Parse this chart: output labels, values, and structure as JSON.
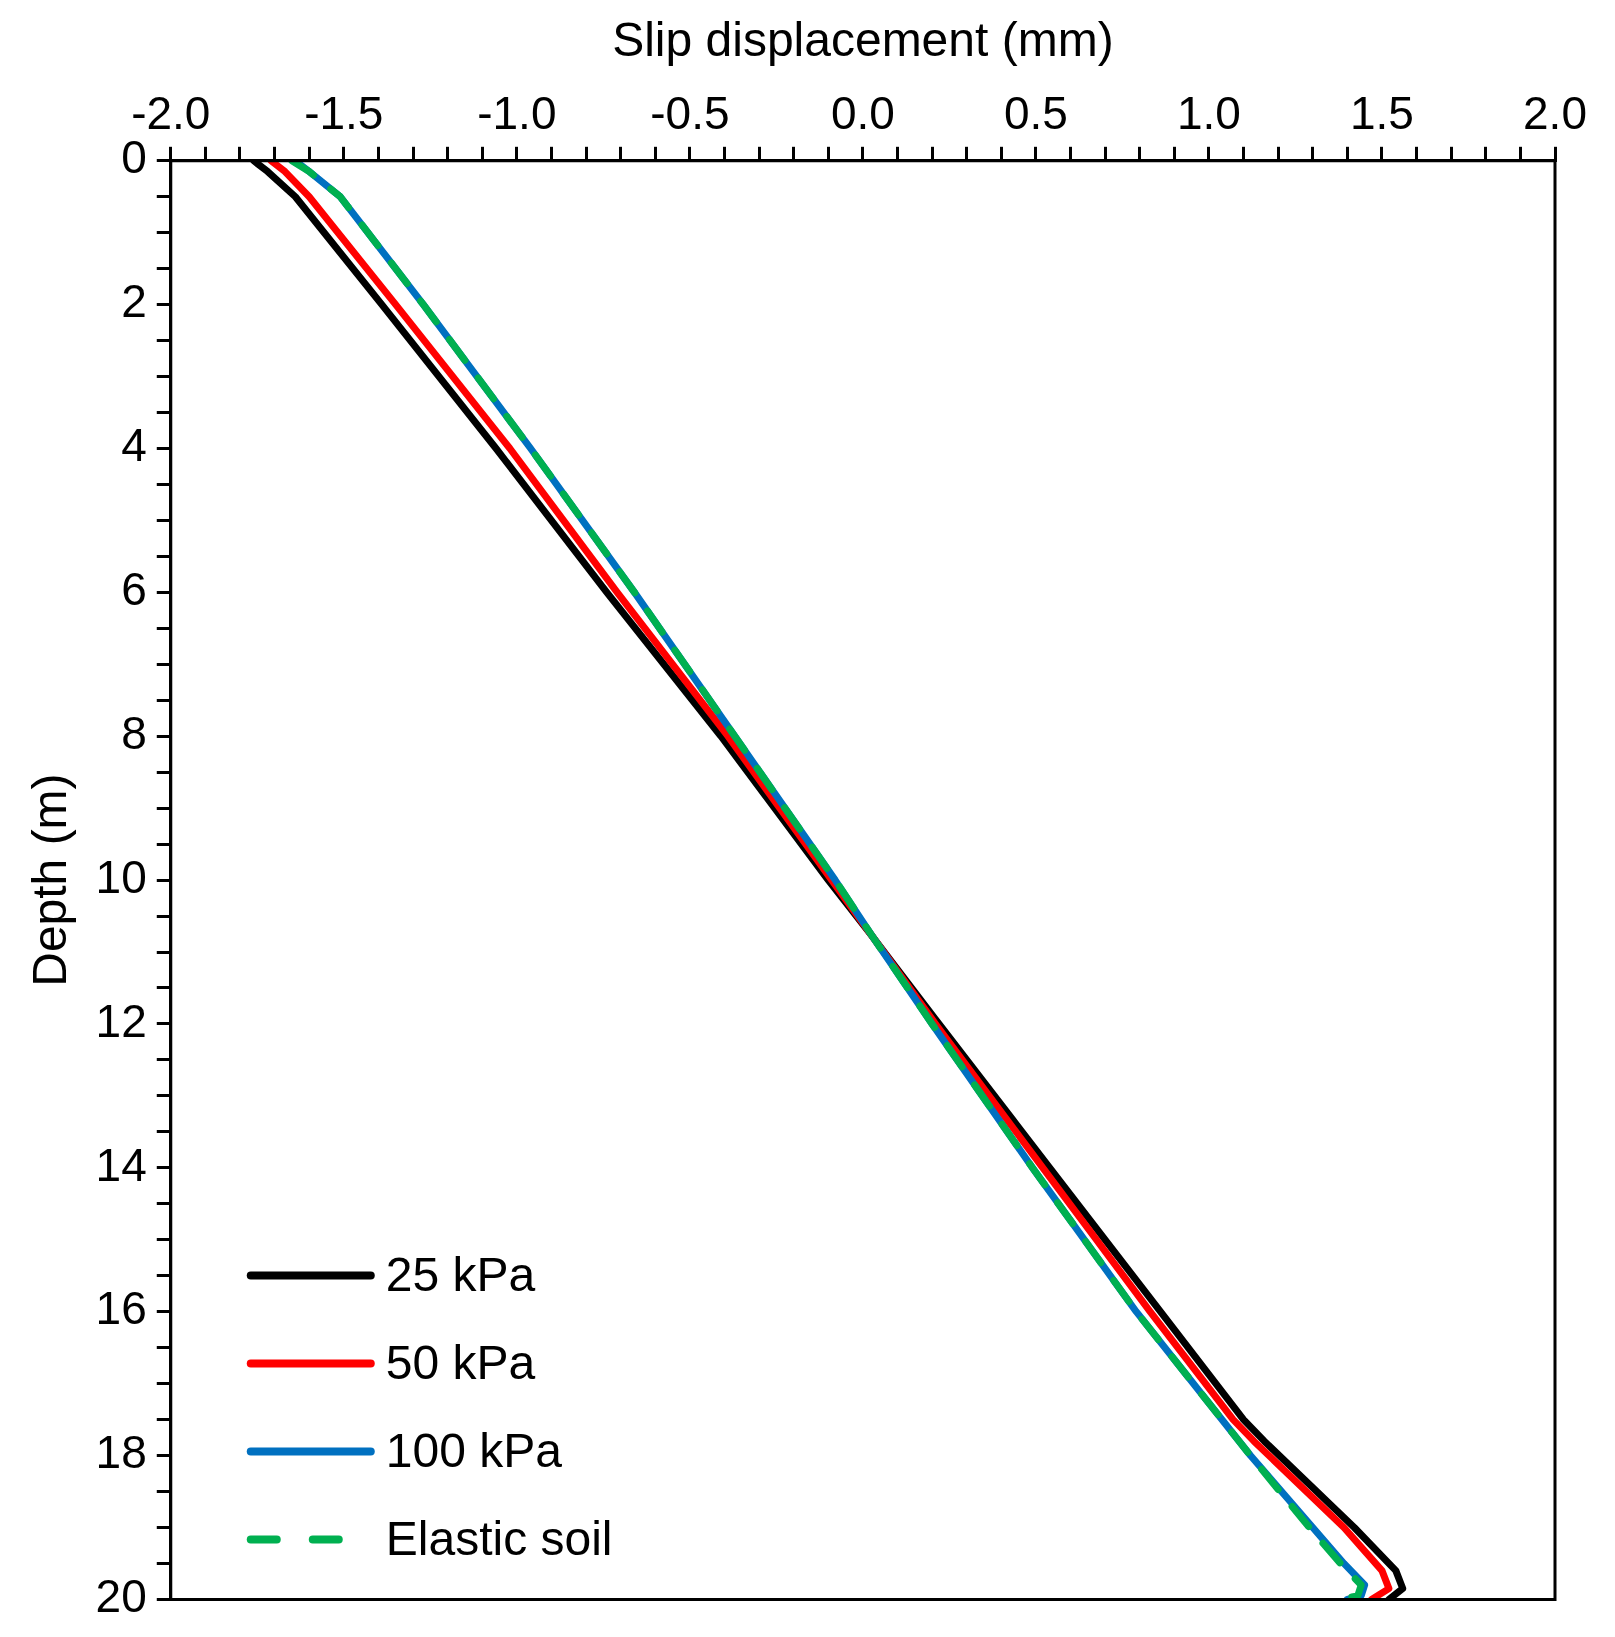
{
  "chart_data": {
    "type": "line",
    "xlabel": "Slip displacement (mm)",
    "ylabel": "Depth (m)",
    "xlim": [
      -2,
      2
    ],
    "ylim": [
      20,
      0
    ],
    "xticks": [
      {
        "value": -2,
        "label": "-2.0"
      },
      {
        "value": -1.9,
        "label": null
      },
      {
        "value": -1.8,
        "label": null
      },
      {
        "value": -1.7,
        "label": null
      },
      {
        "value": -1.6,
        "label": null
      },
      {
        "value": -1.5,
        "label": "-1.5"
      },
      {
        "value": -1.4,
        "label": null
      },
      {
        "value": -1.3,
        "label": null
      },
      {
        "value": -1.2,
        "label": null
      },
      {
        "value": -1.1,
        "label": null
      },
      {
        "value": -1,
        "label": "-1.0"
      },
      {
        "value": -0.9,
        "label": null
      },
      {
        "value": -0.8,
        "label": null
      },
      {
        "value": -0.7,
        "label": null
      },
      {
        "value": -0.6,
        "label": null
      },
      {
        "value": -0.5,
        "label": "-0.5"
      },
      {
        "value": -0.4,
        "label": null
      },
      {
        "value": -0.3,
        "label": null
      },
      {
        "value": -0.2,
        "label": null
      },
      {
        "value": -0.1,
        "label": null
      },
      {
        "value": 0,
        "label": "0.0"
      },
      {
        "value": 0.1,
        "label": null
      },
      {
        "value": 0.2,
        "label": null
      },
      {
        "value": 0.3,
        "label": null
      },
      {
        "value": 0.4,
        "label": null
      },
      {
        "value": 0.5,
        "label": "0.5"
      },
      {
        "value": 0.6,
        "label": null
      },
      {
        "value": 0.7,
        "label": null
      },
      {
        "value": 0.8,
        "label": null
      },
      {
        "value": 0.9,
        "label": null
      },
      {
        "value": 1,
        "label": "1.0"
      },
      {
        "value": 1.1,
        "label": null
      },
      {
        "value": 1.2,
        "label": null
      },
      {
        "value": 1.3,
        "label": null
      },
      {
        "value": 1.4,
        "label": null
      },
      {
        "value": 1.5,
        "label": "1.5"
      },
      {
        "value": 1.6,
        "label": null
      },
      {
        "value": 1.7,
        "label": null
      },
      {
        "value": 1.8,
        "label": null
      },
      {
        "value": 1.9,
        "label": null
      },
      {
        "value": 2,
        "label": "2.0"
      }
    ],
    "yticks": [
      0,
      {
        "value": 0.5,
        "label": null
      },
      {
        "value": 1,
        "label": null
      },
      {
        "value": 1.5,
        "label": null
      },
      2,
      {
        "value": 2.5,
        "label": null
      },
      {
        "value": 3,
        "label": null
      },
      {
        "value": 3.5,
        "label": null
      },
      4,
      {
        "value": 4.5,
        "label": null
      },
      {
        "value": 5,
        "label": null
      },
      {
        "value": 5.5,
        "label": null
      },
      6,
      {
        "value": 6.5,
        "label": null
      },
      {
        "value": 7,
        "label": null
      },
      {
        "value": 7.5,
        "label": null
      },
      8,
      {
        "value": 8.5,
        "label": null
      },
      {
        "value": 9,
        "label": null
      },
      {
        "value": 9.5,
        "label": null
      },
      10,
      {
        "value": 10.5,
        "label": null
      },
      {
        "value": 11,
        "label": null
      },
      {
        "value": 11.5,
        "label": null
      },
      12,
      {
        "value": 12.5,
        "label": null
      },
      {
        "value": 13,
        "label": null
      },
      {
        "value": 13.5,
        "label": null
      },
      14,
      {
        "value": 14.5,
        "label": null
      },
      {
        "value": 15,
        "label": null
      },
      {
        "value": 15.5,
        "label": null
      },
      16,
      {
        "value": 16.5,
        "label": null
      },
      {
        "value": 17,
        "label": null
      },
      {
        "value": 17.5,
        "label": null
      },
      18,
      {
        "value": 18.5,
        "label": null
      },
      {
        "value": 19,
        "label": null
      },
      {
        "value": 19.5,
        "label": null
      },
      20
    ],
    "grid": false,
    "legend": "bottom left",
    "marker": "none",
    "series": [
      {
        "name": "25 kPa",
        "color": "#000000",
        "line_style": "solid",
        "x": [
          -1.76,
          -1.72,
          -1.64,
          -1.39,
          -1.06,
          -0.74,
          -0.41,
          -0.1,
          0.03,
          0.22,
          0.54,
          0.86,
          1.1,
          1.16,
          1.42,
          1.54,
          1.56,
          1.52
        ],
        "values": [
          0,
          0.15,
          0.5,
          2,
          4,
          6,
          8,
          10,
          10.8,
          12,
          14,
          16,
          17.5,
          17.8,
          19,
          19.6,
          19.85,
          20
        ]
      },
      {
        "name": "50 kPa",
        "color": "#ff0000",
        "line_style": "solid",
        "x": [
          -1.71,
          -1.67,
          -1.6,
          -1.35,
          -1.02,
          -0.71,
          -0.39,
          -0.09,
          0.03,
          0.21,
          0.52,
          0.83,
          1.07,
          1.13,
          1.39,
          1.5,
          1.52,
          1.47
        ],
        "values": [
          0,
          0.15,
          0.5,
          2,
          4,
          6,
          8,
          10,
          10.8,
          12,
          14,
          16,
          17.5,
          17.8,
          19,
          19.6,
          19.85,
          20
        ]
      },
      {
        "name": "100 kPa",
        "color": "#0070c0",
        "line_style": "solid",
        "x": [
          -1.64,
          -1.6,
          -1.51,
          -1.27,
          -0.96,
          -0.66,
          -0.37,
          -0.08,
          0.03,
          0.2,
          0.49,
          0.79,
          1.12,
          1.3,
          1.39,
          1.45,
          1.44,
          1.4
        ],
        "values": [
          0,
          0.15,
          0.5,
          2,
          4,
          6,
          8,
          10,
          10.8,
          12,
          14,
          16,
          18,
          19,
          19.5,
          19.8,
          19.95,
          20
        ]
      },
      {
        "name": "Elastic soil",
        "color": "#00b050",
        "line_style": "dashed",
        "x": [
          -1.65,
          -1.6,
          -1.51,
          -1.27,
          -0.96,
          -0.66,
          -0.37,
          -0.08,
          0.03,
          0.2,
          0.49,
          0.79,
          1.12,
          1.29,
          1.38,
          1.44,
          1.43,
          1.38
        ],
        "values": [
          0,
          0.15,
          0.5,
          2,
          4,
          6,
          8,
          10,
          10.8,
          12,
          14,
          16,
          18,
          19,
          19.5,
          19.8,
          19.95,
          20
        ]
      }
    ]
  }
}
